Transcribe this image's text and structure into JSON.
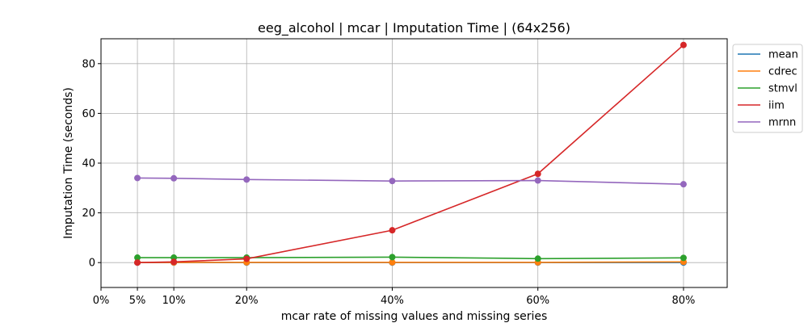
{
  "chart_data": {
    "type": "line",
    "title": "eeg_alcohol | mcar | Imputation Time | (64x256)",
    "xlabel": "mcar rate of missing values and missing series",
    "ylabel": "Imputation Time (seconds)",
    "x": [
      0.05,
      0.1,
      0.2,
      0.4,
      0.6,
      0.8
    ],
    "xticks": [
      0,
      0.05,
      0.1,
      0.2,
      0.4,
      0.6,
      0.8
    ],
    "xtick_labels": [
      "0%",
      "5%",
      "10%",
      "20%",
      "40%",
      "60%",
      "80%"
    ],
    "xlim": [
      0,
      0.86
    ],
    "yticks": [
      0,
      20,
      40,
      60,
      80
    ],
    "ylim": [
      -10,
      90
    ],
    "grid": true,
    "legend_position": "outside-right",
    "series": [
      {
        "name": "mean",
        "color": "#1f77b4",
        "values": [
          0.0,
          0.0,
          0.0,
          0.0,
          0.0,
          0.0
        ]
      },
      {
        "name": "cdrec",
        "color": "#ff7f0e",
        "values": [
          0.05,
          0.05,
          0.1,
          0.1,
          0.1,
          0.3
        ]
      },
      {
        "name": "stmvl",
        "color": "#2ca02c",
        "values": [
          2.0,
          2.0,
          2.0,
          2.2,
          1.6,
          1.9
        ]
      },
      {
        "name": "iim",
        "color": "#d62728",
        "values": [
          0.0,
          0.3,
          1.5,
          13.0,
          35.7,
          87.5
        ]
      },
      {
        "name": "mrnn",
        "color": "#9467bd",
        "values": [
          34.0,
          33.9,
          33.4,
          32.8,
          33.0,
          31.5
        ]
      }
    ]
  }
}
